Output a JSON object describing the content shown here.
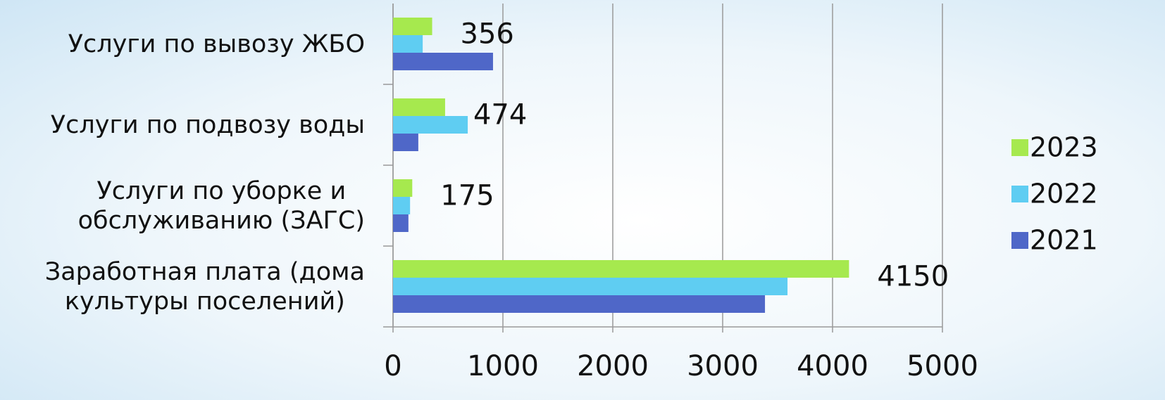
{
  "chart_data": {
    "type": "barh",
    "categories": [
      "Услуги по вывозу ЖБО",
      "Услуги по подвозу воды",
      "Услуги по уборке и\nобслуживанию (ЗАГС)",
      "Заработная плата (дома\nкультуры поселений)"
    ],
    "series": [
      {
        "name": "2023",
        "color": "#a6e94e",
        "values": [
          356,
          474,
          175,
          4150
        ],
        "show_labels": true
      },
      {
        "name": "2022",
        "color": "#5fcdf2",
        "values": [
          270,
          680,
          155,
          3590
        ]
      },
      {
        "name": "2021",
        "color": "#4f67c8",
        "values": [
          910,
          230,
          140,
          3385
        ]
      }
    ],
    "xlim": [
      0,
      5000
    ],
    "xticks": [
      0,
      1000,
      2000,
      3000,
      4000,
      5000
    ],
    "grid": true,
    "legend": "right"
  }
}
